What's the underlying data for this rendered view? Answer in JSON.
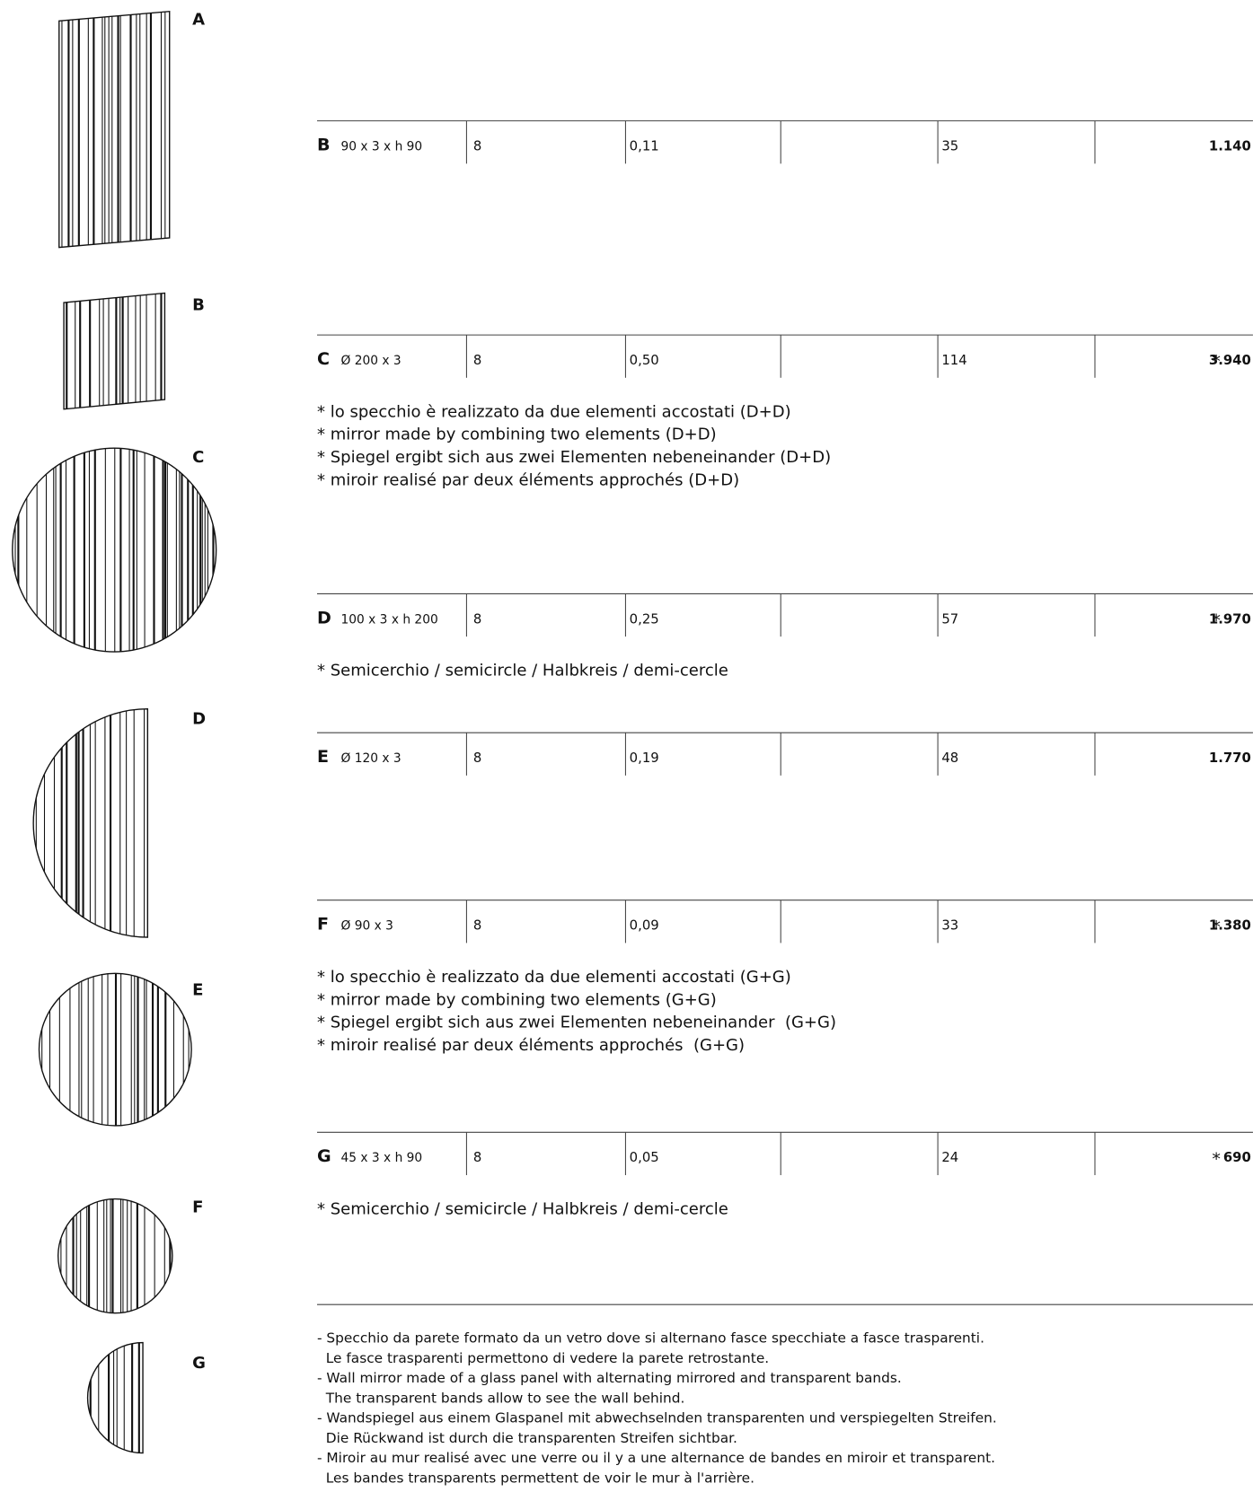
{
  "figures": [
    {
      "label": "A"
    },
    {
      "label": "B"
    },
    {
      "label": "C"
    },
    {
      "label": "D"
    },
    {
      "label": "E"
    },
    {
      "label": "F"
    },
    {
      "label": "G"
    }
  ],
  "rows": [
    {
      "code": "B",
      "size": "90 x 3 x h 90",
      "cells": [
        "8",
        "0,11",
        "35"
      ],
      "price": "1.140",
      "notes": []
    },
    {
      "code": "C",
      "size": "Ø 200 x 3",
      "cells": [
        "8",
        "0,50",
        "114"
      ],
      "price_mark": "*",
      "price": "3.940",
      "notes": [
        "* lo specchio è realizzato da due elementi accostati (D+D)",
        "* mirror made by combining two elements (D+D)",
        "* Spiegel ergibt sich aus zwei Elementen nebeneinander (D+D)",
        "* miroir realisé par deux éléments approchés (D+D)"
      ]
    },
    {
      "code": "D",
      "size": "100 x 3 x h 200",
      "cells": [
        "8",
        "0,25",
        "57"
      ],
      "price_mark": "*",
      "price": "1.970",
      "notes": [
        "* Semicerchio / semicircle / Halbkreis / demi-cercle"
      ]
    },
    {
      "code": "E",
      "size": "Ø 120 x 3",
      "cells": [
        "8",
        "0,19",
        "48"
      ],
      "price": "1.770",
      "notes": []
    },
    {
      "code": "F",
      "size": "Ø 90 x 3",
      "cells": [
        "8",
        "0,09",
        "33"
      ],
      "price_mark": "*",
      "price": "1.380",
      "notes": [
        "* lo specchio è realizzato da due elementi accostati (G+G)",
        "* mirror made by combining two elements (G+G)",
        "* Spiegel ergibt sich aus zwei Elementen nebeneinander  (G+G)",
        "* miroir realisé par deux éléments approchés  (G+G)"
      ]
    },
    {
      "code": "G",
      "size": "45 x 3 x h 90",
      "cells": [
        "8",
        "0,05",
        "24"
      ],
      "price_mark": "*",
      "price": "690",
      "notes": [
        "* Semicerchio / semicircle / Halbkreis / demi-cercle"
      ]
    }
  ],
  "footer": [
    "- Specchio da parete formato da un vetro dove si alternano fasce specchiate a fasce trasparenti.",
    "  Le fasce trasparenti permettono di vedere la parete retrostante.",
    "- Wall mirror made of a glass panel with alternating mirrored and transparent bands.",
    "  The transparent bands allow to see the wall behind.",
    "- Wandspiegel aus einem Glaspanel mit abwechselnden transparenten und verspiegelten Streifen.",
    "  Die Rückwand ist durch die transparenten Streifen sichtbar.",
    "- Miroir au mur realisé avec une verre ou il y a une alternance de bandes en miroir et transparent.",
    "  Les bandes transparents permettent de voir le mur à l'arrière."
  ]
}
